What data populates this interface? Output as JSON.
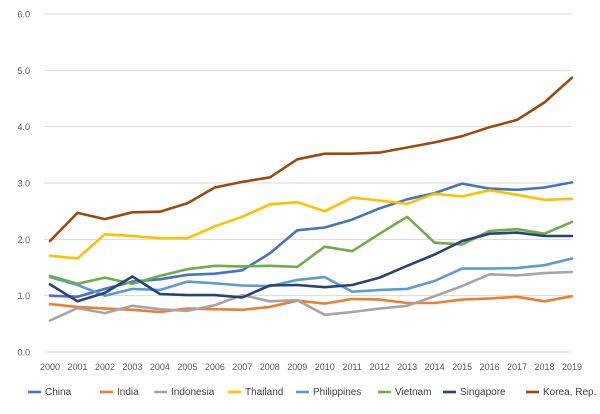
{
  "chart_data": {
    "type": "line",
    "title": "",
    "xlabel": "",
    "ylabel": "",
    "categories": [
      "2000",
      "2001",
      "2002",
      "2003",
      "2004",
      "2005",
      "2006",
      "2007",
      "2008",
      "2009",
      "2010",
      "2011",
      "2012",
      "2013",
      "2014",
      "2015",
      "2016",
      "2017",
      "2018",
      "2019"
    ],
    "ylim": [
      0,
      6
    ],
    "yticks": [
      "0.0",
      "1.0",
      "2.0",
      "3.0",
      "4.0",
      "5.0",
      "6.0"
    ],
    "grid": "horizontal",
    "legend_position": "bottom",
    "series": [
      {
        "name": "China",
        "color": "#4472C4",
        "values": [
          1.0,
          0.98,
          1.12,
          1.25,
          1.29,
          1.37,
          1.39,
          1.45,
          1.75,
          2.16,
          2.21,
          2.35,
          2.55,
          2.71,
          2.82,
          2.99,
          2.9,
          2.88,
          2.92,
          3.01
        ]
      },
      {
        "name": "India",
        "color": "#ED7D31",
        "values": [
          0.85,
          0.8,
          0.77,
          0.75,
          0.71,
          0.77,
          0.76,
          0.75,
          0.8,
          0.91,
          0.86,
          0.94,
          0.93,
          0.87,
          0.87,
          0.93,
          0.95,
          0.98,
          0.9,
          0.99
        ]
      },
      {
        "name": "Indonesia",
        "color": "#A5A5A5",
        "values": [
          0.56,
          0.78,
          0.69,
          0.82,
          0.76,
          0.73,
          0.83,
          1.01,
          0.9,
          0.92,
          0.66,
          0.71,
          0.77,
          0.82,
          0.99,
          1.17,
          1.38,
          1.36,
          1.4,
          1.42
        ]
      },
      {
        "name": "Thailand",
        "color": "#FFC000",
        "values": [
          1.71,
          1.66,
          2.09,
          2.06,
          2.02,
          2.02,
          2.23,
          2.4,
          2.62,
          2.66,
          2.5,
          2.74,
          2.69,
          2.63,
          2.81,
          2.76,
          2.87,
          2.79,
          2.7,
          2.72
        ]
      },
      {
        "name": "Philippines",
        "color": "#5B9BD5",
        "values": [
          1.33,
          1.19,
          1.0,
          1.12,
          1.1,
          1.25,
          1.22,
          1.18,
          1.17,
          1.28,
          1.33,
          1.07,
          1.1,
          1.12,
          1.26,
          1.48,
          1.48,
          1.49,
          1.54,
          1.66
        ]
      },
      {
        "name": "Vietnam",
        "color": "#70AD47",
        "values": [
          1.35,
          1.21,
          1.32,
          1.21,
          1.35,
          1.47,
          1.53,
          1.52,
          1.53,
          1.51,
          1.87,
          1.79,
          2.1,
          2.4,
          1.94,
          1.91,
          2.15,
          2.18,
          2.1,
          2.31
        ]
      },
      {
        "name": "Singapore",
        "color": "#264478",
        "values": [
          1.2,
          0.9,
          1.05,
          1.34,
          1.03,
          1.01,
          1.01,
          0.97,
          1.18,
          1.19,
          1.15,
          1.19,
          1.32,
          1.53,
          1.73,
          1.97,
          2.1,
          2.12,
          2.06,
          2.06
        ]
      },
      {
        "name": "Korea, Rep.",
        "color": "#9E480E",
        "values": [
          1.97,
          2.47,
          2.36,
          2.48,
          2.49,
          2.64,
          2.92,
          3.02,
          3.1,
          3.42,
          3.52,
          3.52,
          3.54,
          3.63,
          3.72,
          3.83,
          3.99,
          4.12,
          4.43,
          4.87
        ]
      }
    ]
  }
}
